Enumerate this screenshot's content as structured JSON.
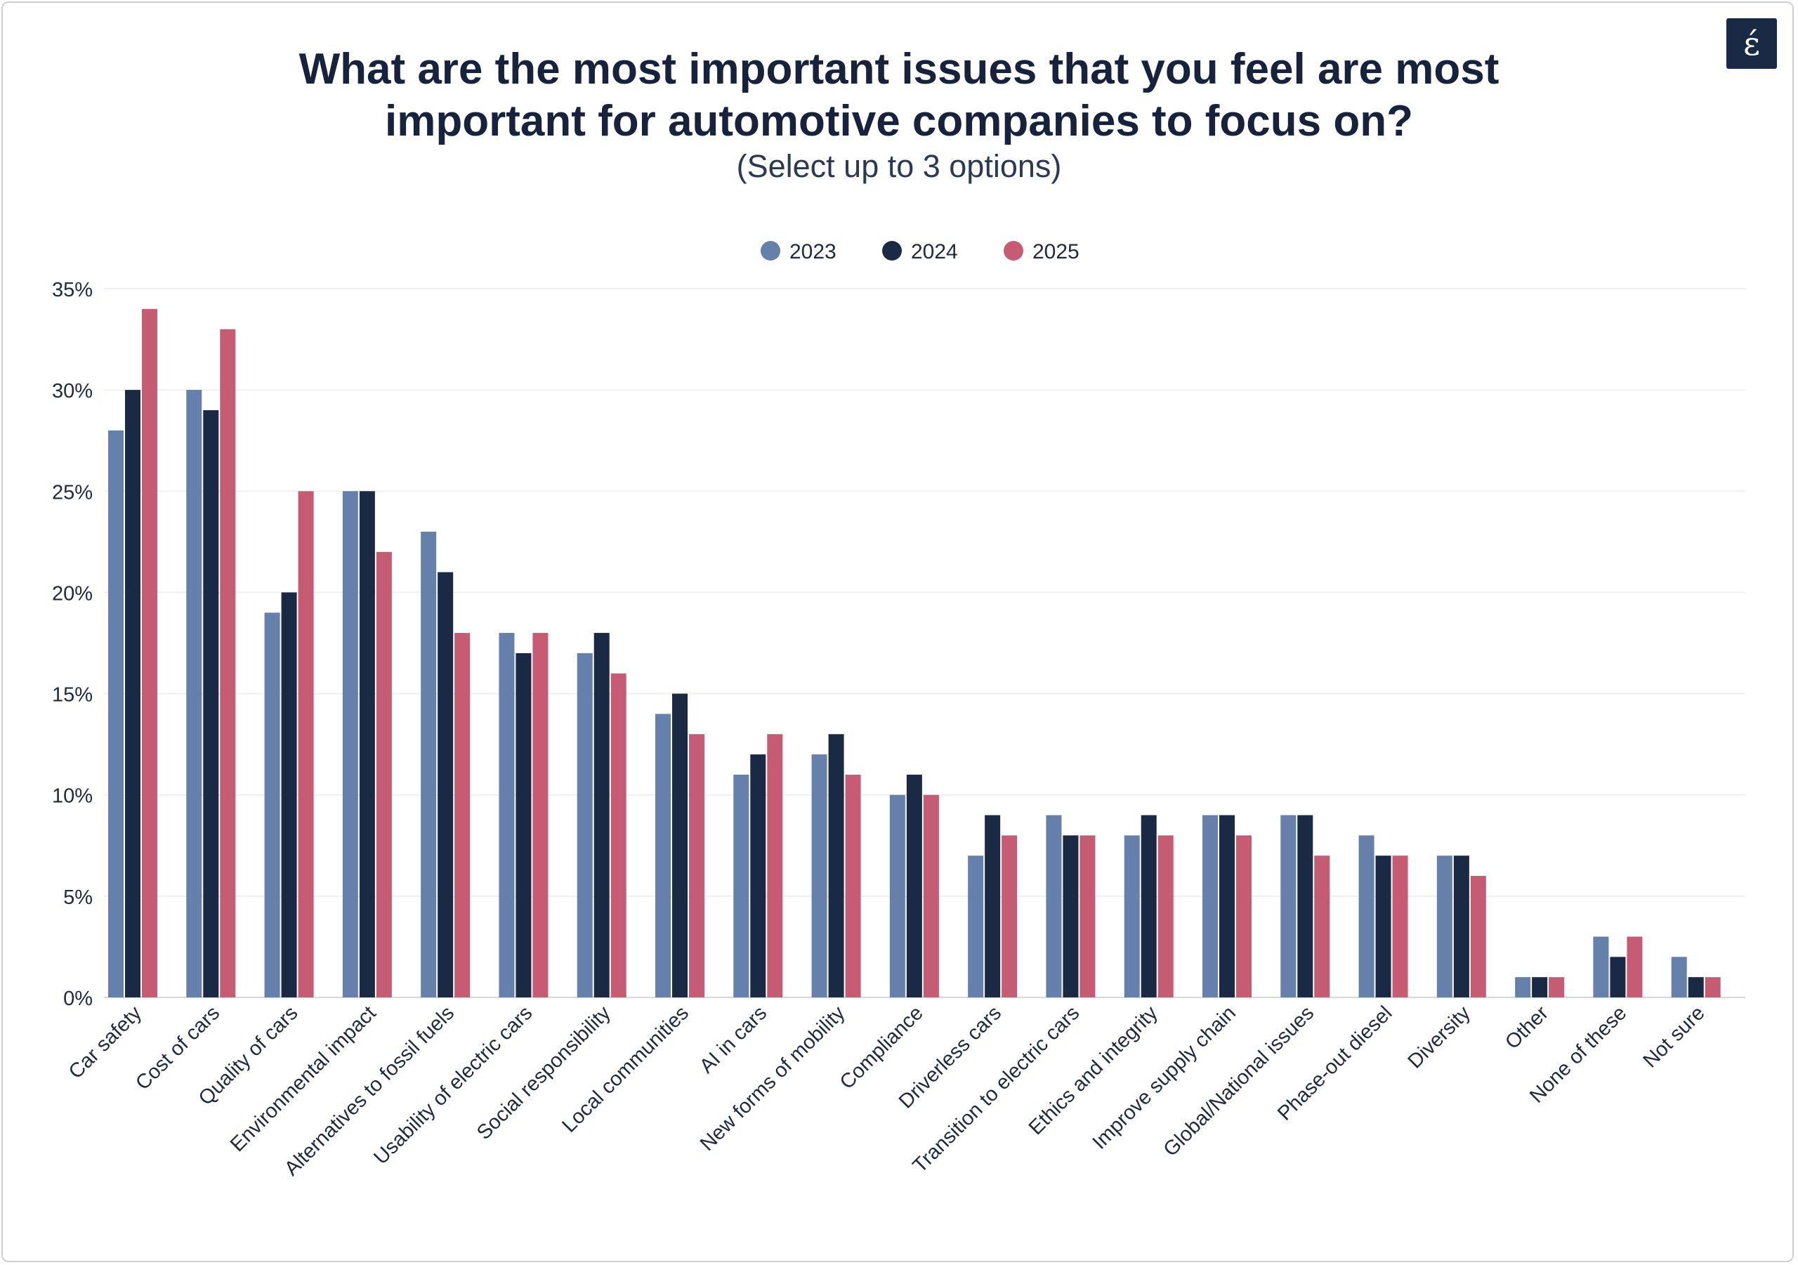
{
  "logo": {
    "glyph": "έ",
    "icon": "brand-logo-icon"
  },
  "chart_data": {
    "type": "bar",
    "title": [
      "What are the most important issues that you feel are most",
      "important for automotive companies to focus on?"
    ],
    "subtitle": "(Select up to 3 options)",
    "xlabel": "",
    "ylabel": "",
    "ylim": [
      0,
      35
    ],
    "yticks": [
      0,
      5,
      10,
      15,
      20,
      25,
      30,
      35
    ],
    "ytick_labels": [
      "0%",
      "5%",
      "10%",
      "15%",
      "20%",
      "25%",
      "30%",
      "35%"
    ],
    "grid": true,
    "legend_position": "top-center",
    "categories": [
      "Car safety",
      "Cost of cars",
      "Quality of cars",
      "Environmental impact",
      "Alternatives to fossil fuels",
      "Usability of electric cars",
      "Social responsibility",
      "Local communities",
      "AI in cars",
      "New forms of mobility",
      "Compliance",
      "Driverless cars",
      "Transition to electric cars",
      "Ethics and integrity",
      "Improve supply chain",
      "Global/National issues",
      "Phase-out diesel",
      "Diversity",
      "Other",
      "None of these",
      "Not sure"
    ],
    "series": [
      {
        "name": "2023",
        "color": "#6580aa",
        "values": [
          28,
          30,
          19,
          25,
          23,
          18,
          17,
          14,
          11,
          12,
          10,
          7,
          9,
          8,
          9,
          9,
          8,
          7,
          1,
          3,
          2
        ]
      },
      {
        "name": "2024",
        "color": "#1b2a44",
        "values": [
          30,
          29,
          20,
          25,
          21,
          17,
          18,
          15,
          12,
          13,
          11,
          9,
          8,
          9,
          9,
          9,
          7,
          7,
          1,
          2,
          1
        ]
      },
      {
        "name": "2025",
        "color": "#c55c74",
        "values": [
          34,
          33,
          25,
          22,
          18,
          18,
          16,
          13,
          13,
          11,
          10,
          8,
          8,
          8,
          8,
          7,
          7,
          6,
          1,
          3,
          1
        ]
      }
    ]
  }
}
